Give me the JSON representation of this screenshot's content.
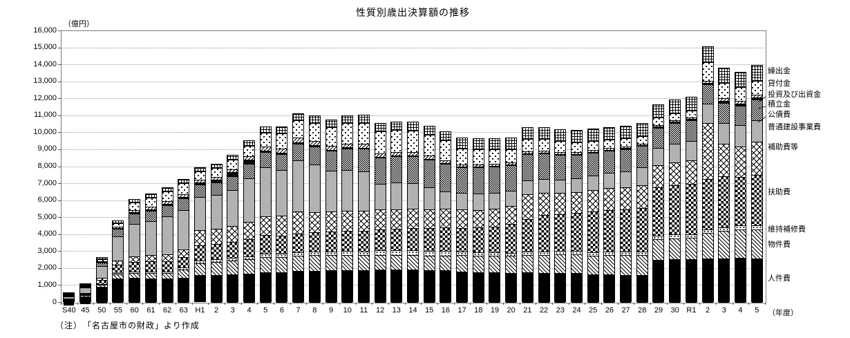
{
  "title": "性質別歳出決算額の推移",
  "y_unit": "（億円）",
  "x_unit": "（年度）",
  "note": "（注）　「名古屋市の財政」より作成",
  "chart_data": {
    "type": "bar",
    "subtype": "stacked-vertical",
    "title": "性質別歳出決算額の推移",
    "ylabel": "（億円）",
    "xlabel": "（年度）",
    "ylim": [
      0,
      16000
    ],
    "ytick_step": 1000,
    "grid": "horizontal-dotted",
    "legend_position": "right-outside-top-to-bottom",
    "yticks": [
      "0",
      "1,000",
      "2,000",
      "3,000",
      "4,000",
      "5,000",
      "6,000",
      "7,000",
      "8,000",
      "9,000",
      "10,000",
      "11,000",
      "12,000",
      "13,000",
      "14,000",
      "15,000",
      "16,000"
    ],
    "categories": [
      "S40",
      "45",
      "50",
      "55",
      "60",
      "61",
      "62",
      "63",
      "H1",
      "2",
      "3",
      "4",
      "5",
      "6",
      "7",
      "8",
      "9",
      "10",
      "11",
      "12",
      "13",
      "14",
      "15",
      "16",
      "17",
      "18",
      "19",
      "20",
      "21",
      "22",
      "23",
      "24",
      "25",
      "26",
      "27",
      "28",
      "29",
      "30",
      "R1",
      "2",
      "3",
      "4",
      "5"
    ],
    "series": [
      {
        "name": "人件費",
        "pattern": "solid",
        "values": [
          240,
          450,
          950,
          1450,
          1430,
          1450,
          1430,
          1470,
          1590,
          1620,
          1680,
          1730,
          1780,
          1800,
          1850,
          1870,
          1900,
          1920,
          1930,
          1950,
          1950,
          1940,
          1930,
          1900,
          1830,
          1800,
          1780,
          1760,
          1790,
          1780,
          1770,
          1760,
          1660,
          1650,
          1640,
          1630,
          2520,
          2550,
          2560,
          2600,
          2620,
          2650,
          2630
        ]
      },
      {
        "name": "物件費",
        "pattern": "diag",
        "values": [
          35,
          60,
          140,
          240,
          300,
          320,
          340,
          500,
          730,
          760,
          800,
          850,
          900,
          900,
          920,
          930,
          900,
          890,
          880,
          850,
          850,
          860,
          870,
          880,
          970,
          980,
          990,
          1000,
          1050,
          1060,
          1080,
          1100,
          1130,
          1150,
          1170,
          1190,
          1230,
          1250,
          1270,
          1500,
          1600,
          1650,
          1700
        ]
      },
      {
        "name": "維持補修費",
        "pattern": "dots",
        "values": [
          10,
          15,
          40,
          70,
          90,
          90,
          90,
          120,
          150,
          160,
          170,
          180,
          190,
          190,
          200,
          200,
          210,
          220,
          230,
          280,
          280,
          270,
          260,
          250,
          200,
          200,
          200,
          200,
          210,
          210,
          210,
          210,
          200,
          200,
          200,
          200,
          230,
          230,
          230,
          240,
          240,
          250,
          250
        ]
      },
      {
        "name": "扶助費",
        "pattern": "checker",
        "values": [
          35,
          60,
          250,
          480,
          560,
          580,
          600,
          620,
          890,
          900,
          950,
          1000,
          1100,
          1080,
          1100,
          1150,
          1180,
          1200,
          1200,
          1200,
          1250,
          1300,
          1350,
          1400,
          1400,
          1450,
          1500,
          1700,
          1900,
          2150,
          2150,
          2250,
          2400,
          2450,
          2500,
          2550,
          2850,
          2900,
          2950,
          2950,
          3000,
          2850,
          2950
        ]
      },
      {
        "name": "補助費等",
        "pattern": "cross",
        "values": [
          25,
          40,
          120,
          250,
          350,
          370,
          420,
          450,
          890,
          900,
          950,
          1000,
          1100,
          1150,
          1300,
          1200,
          1200,
          1200,
          1200,
          1200,
          1150,
          1150,
          1100,
          1100,
          1080,
          1050,
          1050,
          1050,
          1450,
          1300,
          1250,
          1200,
          1250,
          1300,
          1300,
          1350,
          1300,
          1350,
          1400,
          3300,
          1900,
          1800,
          1950
        ]
      },
      {
        "name": "普通建設事業費",
        "pattern": "gray",
        "values": [
          130,
          300,
          700,
          1450,
          1900,
          2000,
          2200,
          2300,
          1950,
          2000,
          2100,
          2600,
          2900,
          2700,
          3000,
          2800,
          2400,
          2400,
          2300,
          1500,
          1600,
          1500,
          1300,
          1000,
          1000,
          950,
          950,
          900,
          810,
          800,
          800,
          800,
          850,
          900,
          950,
          1050,
          1000,
          1100,
          1150,
          1140,
          1250,
          1250,
          1300
        ]
      },
      {
        "name": "公債費",
        "pattern": "checker-fine",
        "values": [
          20,
          50,
          180,
          430,
          610,
          640,
          670,
          700,
          730,
          750,
          800,
          850,
          900,
          950,
          1000,
          1050,
          1150,
          1250,
          1350,
          1550,
          1550,
          1600,
          1650,
          1650,
          1500,
          1550,
          1550,
          1500,
          1550,
          1500,
          1450,
          1400,
          1350,
          1300,
          1300,
          1250,
          1200,
          1200,
          1200,
          1150,
          1150,
          1150,
          1200
        ]
      },
      {
        "name": "積立金",
        "pattern": "solid2",
        "values": [
          10,
          10,
          30,
          50,
          60,
          70,
          80,
          100,
          130,
          150,
          250,
          250,
          100,
          80,
          80,
          70,
          60,
          60,
          60,
          50,
          50,
          40,
          40,
          40,
          40,
          50,
          50,
          50,
          60,
          70,
          60,
          60,
          60,
          60,
          60,
          60,
          70,
          80,
          80,
          90,
          150,
          130,
          120
        ]
      },
      {
        "name": "投資及び出資金",
        "pattern": "diag2",
        "values": [
          15,
          30,
          60,
          90,
          130,
          140,
          150,
          160,
          170,
          180,
          190,
          200,
          250,
          250,
          280,
          280,
          250,
          230,
          220,
          200,
          190,
          180,
          170,
          150,
          120,
          110,
          100,
          100,
          100,
          90,
          90,
          90,
          90,
          90,
          90,
          90,
          90,
          90,
          90,
          100,
          150,
          150,
          150
        ]
      },
      {
        "name": "貸付金",
        "pattern": "diamonds",
        "values": [
          20,
          50,
          120,
          200,
          450,
          560,
          580,
          620,
          490,
          500,
          550,
          600,
          800,
          900,
          1000,
          1050,
          1100,
          1200,
          1250,
          1300,
          1300,
          1300,
          1250,
          1200,
          940,
          900,
          850,
          800,
          750,
          700,
          650,
          600,
          550,
          500,
          480,
          450,
          430,
          420,
          400,
          1100,
          900,
          800,
          850
        ]
      },
      {
        "name": "繰出金",
        "pattern": "grid",
        "values": [
          10,
          35,
          70,
          110,
          170,
          190,
          210,
          220,
          200,
          220,
          250,
          280,
          320,
          350,
          380,
          400,
          400,
          420,
          430,
          450,
          450,
          470,
          480,
          480,
          610,
          620,
          630,
          640,
          650,
          660,
          670,
          680,
          690,
          700,
          710,
          720,
          740,
          760,
          780,
          900,
          850,
          870,
          880
        ]
      }
    ]
  }
}
